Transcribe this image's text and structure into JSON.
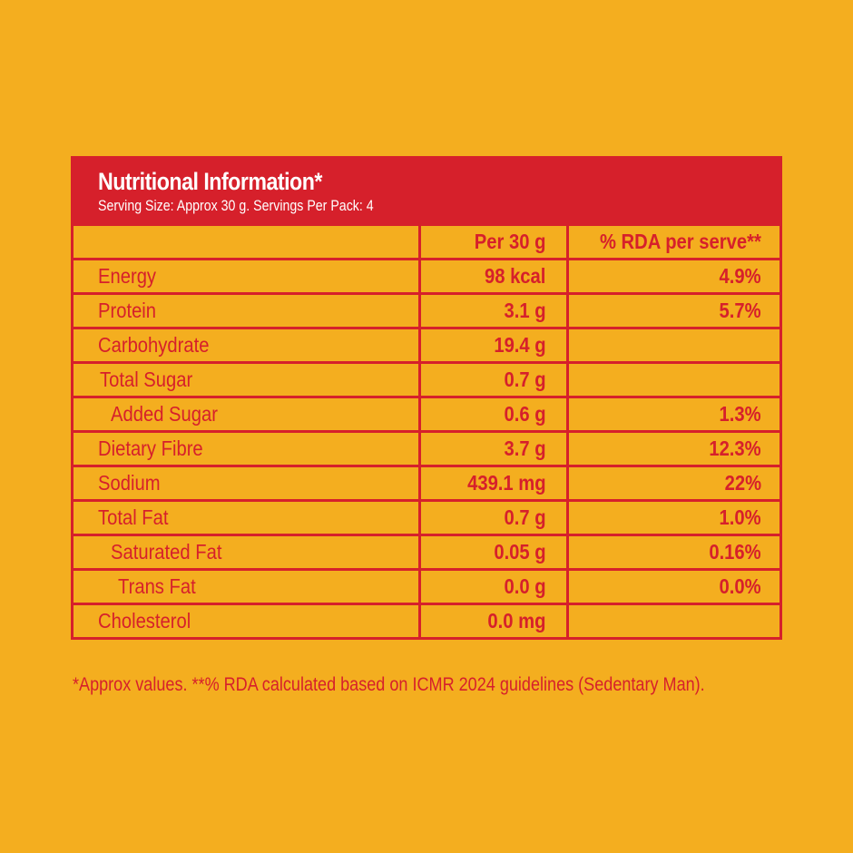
{
  "header": {
    "title": "Nutritional Information*",
    "subtitle": "Serving Size: Approx 30 g. Servings Per Pack: 4"
  },
  "table": {
    "columns": [
      "",
      "Per 30 g",
      "% RDA per serve**"
    ],
    "rows": [
      {
        "name": "Energy",
        "per": "98 kcal",
        "rda": "4.9%"
      },
      {
        "name": "Protein",
        "per": "3.1 g",
        "rda": "5.7%"
      },
      {
        "name": "Carbohydrate",
        "per": "19.4 g",
        "rda": ""
      },
      {
        "name": "Total Sugar",
        "per": "0.7 g",
        "rda": ""
      },
      {
        "name": "Added Sugar",
        "per": "0.6 g",
        "rda": "1.3%"
      },
      {
        "name": "Dietary Fibre",
        "per": "3.7 g",
        "rda": "12.3%"
      },
      {
        "name": "Sodium",
        "per": "439.1 mg",
        "rda": "22%"
      },
      {
        "name": "Total Fat",
        "per": "0.7 g",
        "rda": "1.0%"
      },
      {
        "name": "Saturated Fat",
        "per": "0.05 g",
        "rda": "0.16%"
      },
      {
        "name": "Trans Fat",
        "per": "0.0 g",
        "rda": "0.0%"
      },
      {
        "name": "Cholesterol",
        "per": "0.0 mg",
        "rda": ""
      }
    ]
  },
  "footnote": "*Approx values. **% RDA calculated based on ICMR 2024 guidelines (Sedentary Man).",
  "colors": {
    "background": "#F4AE1F",
    "accent": "#D6202B",
    "header_text": "#FFFFFF"
  }
}
